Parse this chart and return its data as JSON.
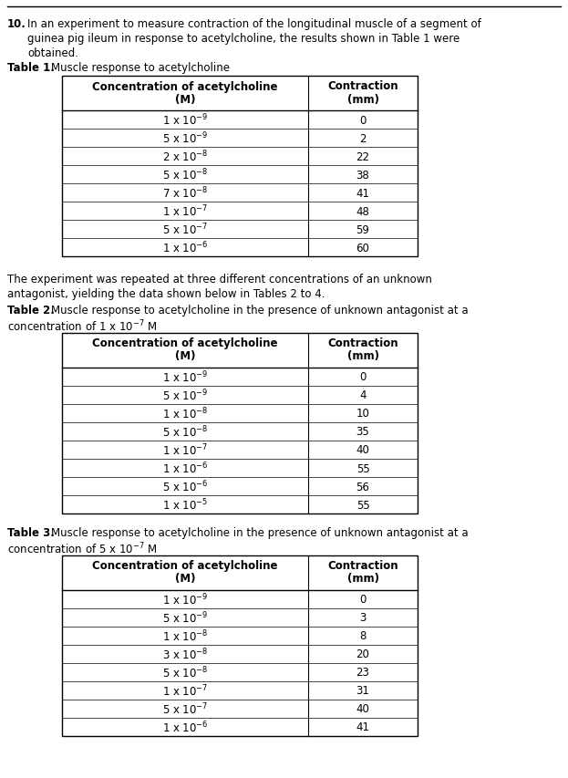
{
  "bg_color": "#ffffff",
  "text_color": "#000000",
  "font_size_body": 8.5,
  "font_size_table_header": 8.5,
  "font_size_table_data": 8.5,
  "font_size_question": 8.5,
  "q_line1": "10.  In an experiment to measure contraction of the longitudinal muscle of a segment of",
  "q_line2": "      guinea pig ileum in response to acetylcholine, the results shown in Table 1 were",
  "q_line3": "      obtained.",
  "table1_title_bold": "Table 1.",
  "table1_title_rest": " Muscle response to acetylcholine",
  "table1_headers": [
    "Concentration of acetylcholine\n(M)",
    "Contraction\n(mm)"
  ],
  "table1_data": [
    [
      "1 x 10$^{-9}$",
      "0"
    ],
    [
      "5 x 10$^{-9}$",
      "2"
    ],
    [
      "2 x 10$^{-8}$",
      "22"
    ],
    [
      "5 x 10$^{-8}$",
      "38"
    ],
    [
      "7 x 10$^{-8}$",
      "41"
    ],
    [
      "1 x 10$^{-7}$",
      "48"
    ],
    [
      "5 x 10$^{-7}$",
      "59"
    ],
    [
      "1 x 10$^{-6}$",
      "60"
    ]
  ],
  "between_line1": "The experiment was repeated at three different concentrations of an unknown",
  "between_line2": "antagonist, yielding the data shown below in Tables 2 to 4.",
  "table2_title_bold": "Table 2.",
  "table2_title_rest": " Muscle response to acetylcholine in the presence of unknown antagonist at a",
  "table2_title_line2": "concentration of 1 x 10$^{-7}$ M",
  "table2_headers": [
    "Concentration of acetylcholine\n(M)",
    "Contraction\n(mm)"
  ],
  "table2_data": [
    [
      "1 x 10$^{-9}$",
      "0"
    ],
    [
      "5 x 10$^{-9}$",
      "4"
    ],
    [
      "1 x 10$^{-8}$",
      "10"
    ],
    [
      "5 x 10$^{-8}$",
      "35"
    ],
    [
      "1 x 10$^{-7}$",
      "40"
    ],
    [
      "1 x 10$^{-6}$",
      "55"
    ],
    [
      "5 x 10$^{-6}$",
      "56"
    ],
    [
      "1 x 10$^{-5}$",
      "55"
    ]
  ],
  "table3_title_bold": "Table 3.",
  "table3_title_rest": " Muscle response to acetylcholine in the presence of unknown antagonist at a",
  "table3_title_line2": "concentration of 5 x 10$^{-7}$ M",
  "table3_headers": [
    "Concentration of acetylcholine\n(M)",
    "Contraction\n(mm)"
  ],
  "table3_data": [
    [
      "1 x 10$^{-9}$",
      "0"
    ],
    [
      "5 x 10$^{-9}$",
      "3"
    ],
    [
      "1 x 10$^{-8}$",
      "8"
    ],
    [
      "3 x 10$^{-8}$",
      "20"
    ],
    [
      "5 x 10$^{-8}$",
      "23"
    ],
    [
      "1 x 10$^{-7}$",
      "31"
    ],
    [
      "5 x 10$^{-7}$",
      "40"
    ],
    [
      "1 x 10$^{-6}$",
      "41"
    ]
  ]
}
